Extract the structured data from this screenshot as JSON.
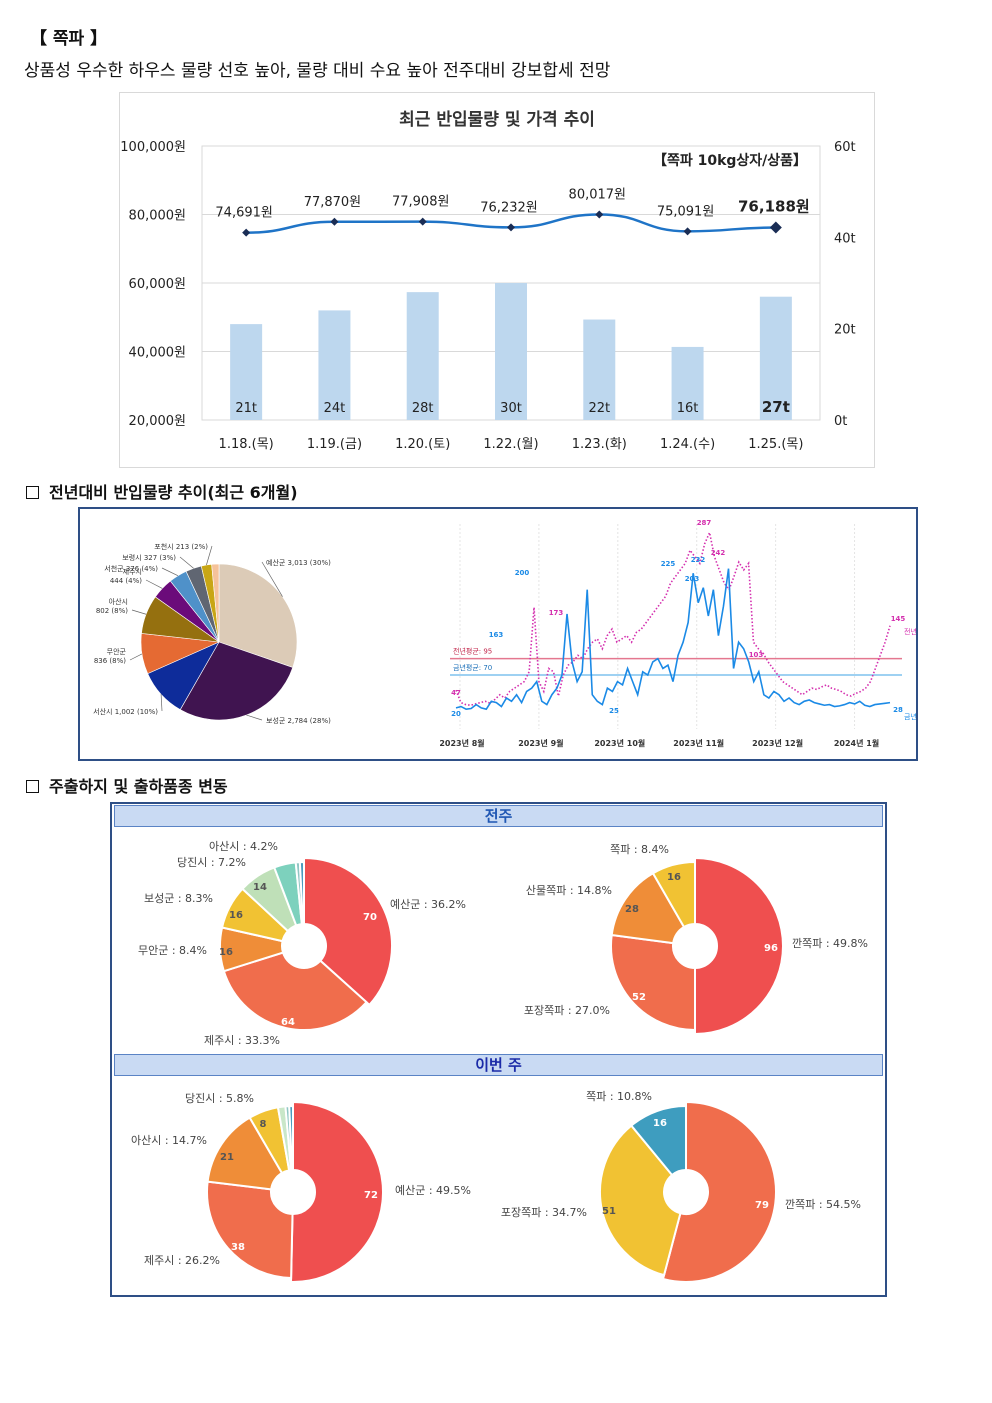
{
  "page": {
    "section_title": "【 쪽파 】",
    "headline": "상품성 우수한 하우스 물량 선호 높아, 물량 대비 수요 높아 전주대비 강보합세 전망",
    "annual_heading": "전년대비 반입물량 추이(최근 6개월)",
    "shipping_heading": "주출하지 및 출하품종 변동",
    "band_prev": "전주",
    "band_this": "이번 주"
  },
  "chart_data": [
    {
      "id": "recent",
      "type": "bar",
      "title": "최근 반입물량 및 가격 추이",
      "annotation": "【쪽파 10kg상자/상품】",
      "categories": [
        "1.18.(목)",
        "1.19.(금)",
        "1.20.(토)",
        "1.22.(월)",
        "1.23.(화)",
        "1.24.(수)",
        "1.25.(목)"
      ],
      "series": [
        {
          "axis": "right",
          "values": [
            21,
            24,
            28,
            30,
            22,
            16,
            27
          ],
          "labels": [
            "21t",
            "24t",
            "28t",
            "30t",
            "22t",
            "16t",
            "27t"
          ],
          "color": "#bdd7ee"
        },
        {
          "axis": "left",
          "type": "line",
          "values": [
            74691,
            77870,
            77908,
            76232,
            80017,
            75091,
            76188
          ],
          "labels": [
            "74,691원",
            "77,870원",
            "77,908원",
            "76,232원",
            "80,017원",
            "75,091원",
            "76,188원"
          ],
          "color": "#1f74c7"
        }
      ],
      "left_axis": {
        "ylim": [
          20000,
          100000
        ],
        "ticks": [
          "20,000원",
          "40,000원",
          "60,000원",
          "80,000원",
          "100,000원"
        ]
      },
      "right_axis": {
        "ylim": [
          0,
          60
        ],
        "ticks": [
          "0t",
          "20t",
          "40t",
          "60t"
        ]
      },
      "grid": true
    },
    {
      "id": "origin-6m",
      "type": "pie",
      "slices": [
        {
          "label": "예산군 3,013 (30%)",
          "value": 3013,
          "color": "#dccbb7"
        },
        {
          "label": "보성군 2,784 (28%)",
          "value": 2784,
          "color": "#401450"
        },
        {
          "label": "서산시 1,002 (10%)",
          "value": 1002,
          "color": "#0e2c9a"
        },
        {
          "label": "무안군 836 (8%)",
          "value": 836,
          "color": "#e56a33"
        },
        {
          "label": "아산시 802 (8%)",
          "value": 802,
          "color": "#95700f"
        },
        {
          "label": "제주시 444 (4%)",
          "value": 444,
          "color": "#6b0b7a"
        },
        {
          "label": "서천군 376 (4%)",
          "value": 376,
          "color": "#4f91c9"
        },
        {
          "label": "보령시 327 (3%)",
          "value": 327,
          "color": "#606672"
        },
        {
          "label": "포천시 213 (2%)",
          "value": 213,
          "color": "#c8a615"
        },
        {
          "label": "",
          "value": 150,
          "color": "#f5c29a"
        }
      ]
    },
    {
      "id": "trend-6m",
      "type": "line",
      "x_ticks": [
        "2023년 8월",
        "2023년 9월",
        "2023년 10월",
        "2023년 11월",
        "2023년 12월",
        "2024년 1월"
      ],
      "series": [
        {
          "name": "전년",
          "color": "#d42fae",
          "style": "dotted",
          "values": [
            47,
            28,
            25,
            24,
            26,
            28,
            30,
            27,
            33,
            40,
            35,
            45,
            50,
            55,
            60,
            75,
            173,
            60,
            45,
            80,
            75,
            38,
            70,
            85,
            90,
            100,
            95,
            110,
            120,
            125,
            110,
            130,
            140,
            120,
            125,
            130,
            120,
            135,
            140,
            150,
            160,
            170,
            180,
            190,
            210,
            220,
            230,
            240,
            260,
            250,
            240,
            270,
            287,
            250,
            230,
            210,
            200,
            220,
            242,
            230,
            240,
            120,
            110,
            103,
            90,
            80,
            70,
            60,
            55,
            50,
            45,
            40,
            45,
            50,
            48,
            52,
            55,
            50,
            48,
            45,
            40,
            38,
            42,
            45,
            50,
            60,
            80,
            100,
            120,
            145
          ]
        },
        {
          "name": "금년",
          "color": "#1b8ae6",
          "style": "solid",
          "values": [
            20,
            22,
            18,
            19,
            25,
            20,
            18,
            30,
            28,
            22,
            35,
            30,
            40,
            28,
            45,
            50,
            60,
            30,
            25,
            40,
            50,
            70,
            163,
            90,
            60,
            75,
            200,
            40,
            30,
            25,
            50,
            45,
            60,
            55,
            80,
            60,
            40,
            75,
            70,
            90,
            95,
            80,
            85,
            60,
            100,
            120,
            150,
            225,
            180,
            203,
            160,
            200,
            130,
            175,
            232,
            80,
            120,
            110,
            90,
            60,
            75,
            40,
            35,
            45,
            40,
            30,
            35,
            28,
            25,
            30,
            32,
            28,
            26,
            24,
            25,
            22,
            23,
            25,
            28,
            26,
            30,
            24,
            22,
            25,
            26,
            27,
            28
          ]
        }
      ],
      "ref_lines": [
        {
          "label": "전년평균: 95",
          "value": 95,
          "color": "#e4778f"
        },
        {
          "label": "금년평균: 70",
          "value": 70,
          "color": "#7ec2ee"
        }
      ],
      "annotations": [
        "173",
        "163",
        "200",
        "225",
        "203",
        "232",
        "287",
        "242",
        "103",
        "145",
        "28",
        "47",
        "20",
        "25"
      ],
      "end_labels": [
        "전년",
        "금년"
      ]
    },
    {
      "id": "prev-origin",
      "type": "pie",
      "title": "전주",
      "slices": [
        {
          "label": "예산군 : 36.2%",
          "value": 70,
          "color": "#ef4f4f"
        },
        {
          "label": "제주시 : 33.3%",
          "value": 64,
          "color": "#f06d4c"
        },
        {
          "label": "무안군 : 8.4%",
          "value": 16,
          "color": "#ef8d38"
        },
        {
          "label": "보성군 : 8.3%",
          "value": 16,
          "color": "#f1c233"
        },
        {
          "label": "당진시 : 7.2%",
          "value": 14,
          "color": "#bfe0b8"
        },
        {
          "label": "아산시 : 4.2%",
          "value": 8,
          "color": "#7dd1bd"
        },
        {
          "label": "",
          "value": 1.5,
          "color": "#8fc6c4"
        },
        {
          "label": "",
          "value": 1.5,
          "color": "#4a9bbd"
        }
      ]
    },
    {
      "id": "prev-variety",
      "type": "pie",
      "title": "전주",
      "slices": [
        {
          "label": "깐쪽파 : 49.8%",
          "value": 96,
          "color": "#ef4f4f"
        },
        {
          "label": "포장쪽파 : 27.0%",
          "value": 52,
          "color": "#f06d4c"
        },
        {
          "label": "산물쪽파 : 14.8%",
          "value": 28,
          "color": "#ef8d38"
        },
        {
          "label": "쪽파 : 8.4%",
          "value": 16,
          "color": "#f1c233"
        }
      ]
    },
    {
      "id": "this-origin",
      "type": "pie",
      "title": "이번 주",
      "slices": [
        {
          "label": "예산군 : 49.5%",
          "value": 72,
          "color": "#ef4f4f"
        },
        {
          "label": "제주시 : 26.2%",
          "value": 38,
          "color": "#f06d4c"
        },
        {
          "label": "아산시 : 14.7%",
          "value": 21,
          "color": "#ef8d38"
        },
        {
          "label": "당진시 : 5.8%",
          "value": 8,
          "color": "#f1c233"
        },
        {
          "label": "",
          "value": 2,
          "color": "#c9e7c9"
        },
        {
          "label": "",
          "value": 1,
          "color": "#8fc6c4"
        },
        {
          "label": "",
          "value": 1,
          "color": "#4a9bbd"
        }
      ]
    },
    {
      "id": "this-variety",
      "type": "pie",
      "title": "이번 주",
      "slices": [
        {
          "label": "깐쪽파 : 54.5%",
          "value": 79,
          "color": "#f06d4c"
        },
        {
          "label": "포장쪽파 : 34.7%",
          "value": 51,
          "color": "#f1c233"
        },
        {
          "label": "쪽파 : 10.8%",
          "value": 16,
          "color": "#3e9dbf"
        }
      ]
    }
  ]
}
